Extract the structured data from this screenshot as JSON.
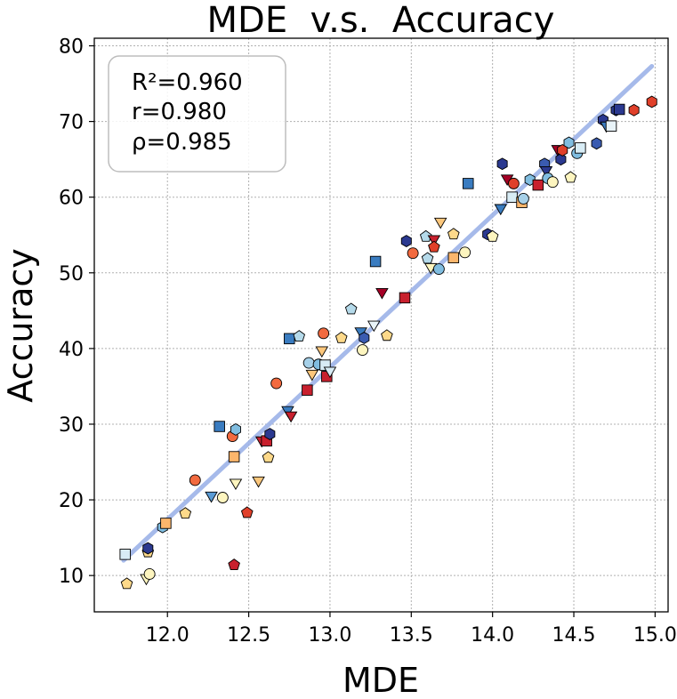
{
  "chart_data": {
    "type": "scatter",
    "title": "MDE  v.s.  Accuracy",
    "xlabel": "MDE",
    "ylabel": "Accuracy",
    "xlim": [
      11.55,
      15.08
    ],
    "ylim": [
      5.2,
      81
    ],
    "xticks": [
      12.0,
      12.5,
      13.0,
      13.5,
      14.0,
      14.5,
      15.0
    ],
    "yticks": [
      10,
      20,
      30,
      40,
      50,
      60,
      70,
      80
    ],
    "xtick_labels": [
      "12.0",
      "12.5",
      "13.0",
      "13.5",
      "14.0",
      "14.5",
      "15.0"
    ],
    "ytick_labels": [
      "10",
      "20",
      "30",
      "40",
      "50",
      "60",
      "70",
      "80"
    ],
    "grid": true,
    "stats": [
      "R²=0.960",
      "r=0.980",
      "ρ=0.985"
    ],
    "stats_box_location": "upper-left",
    "fit_line": {
      "x": [
        11.73,
        14.98
      ],
      "y": [
        12.0,
        77.3
      ],
      "color": "#9db3e8"
    },
    "colors": {
      "dark_navy": "#2b3990",
      "steel_blue": "#3a7cc0",
      "light_blue": "#80bde0",
      "pale_blue": "#d8ecf5",
      "cream": "#fdf5bf",
      "light_orange": "#fcc77c",
      "orange_red": "#f26a3f",
      "crimson": "#c8202e",
      "dark_red": "#a50026"
    },
    "points": [
      {
        "x": 11.74,
        "y": 12.8,
        "marker": "square",
        "color": "#d8ecf5"
      },
      {
        "x": 11.75,
        "y": 8.9,
        "marker": "pentagon",
        "color": "#fdd98a"
      },
      {
        "x": 11.87,
        "y": 9.8,
        "marker": "triangle-down",
        "color": "#fdf5bf"
      },
      {
        "x": 11.89,
        "y": 10.2,
        "marker": "circle",
        "color": "#fdf5bf"
      },
      {
        "x": 11.88,
        "y": 13.1,
        "marker": "pentagon",
        "color": "#fdd98a"
      },
      {
        "x": 11.88,
        "y": 13.6,
        "marker": "hexagon",
        "color": "#2b3990"
      },
      {
        "x": 11.97,
        "y": 16.4,
        "marker": "hexagon",
        "color": "#80bde0"
      },
      {
        "x": 11.99,
        "y": 16.9,
        "marker": "square",
        "color": "#fcb66c"
      },
      {
        "x": 12.11,
        "y": 18.2,
        "marker": "pentagon",
        "color": "#fdd98a"
      },
      {
        "x": 12.17,
        "y": 22.6,
        "marker": "circle",
        "color": "#f26a3f"
      },
      {
        "x": 12.27,
        "y": 20.7,
        "marker": "triangle-down",
        "color": "#5a9bd5"
      },
      {
        "x": 12.34,
        "y": 20.3,
        "marker": "circle",
        "color": "#fdf5bf"
      },
      {
        "x": 12.32,
        "y": 29.7,
        "marker": "square",
        "color": "#3a7cc0"
      },
      {
        "x": 12.4,
        "y": 28.4,
        "marker": "circle",
        "color": "#f26a3f"
      },
      {
        "x": 12.42,
        "y": 29.3,
        "marker": "hexagon",
        "color": "#80bde0"
      },
      {
        "x": 12.41,
        "y": 25.7,
        "marker": "square",
        "color": "#fcb66c"
      },
      {
        "x": 12.42,
        "y": 22.4,
        "marker": "triangle-down",
        "color": "#fdf5bf"
      },
      {
        "x": 12.41,
        "y": 11.4,
        "marker": "pentagon",
        "color": "#c8202e"
      },
      {
        "x": 12.49,
        "y": 18.3,
        "marker": "pentagon",
        "color": "#e0402a"
      },
      {
        "x": 12.56,
        "y": 22.7,
        "marker": "triangle-down",
        "color": "#fcc77c"
      },
      {
        "x": 12.58,
        "y": 28.0,
        "marker": "triangle-down",
        "color": "#c8202e"
      },
      {
        "x": 12.61,
        "y": 27.8,
        "marker": "square",
        "color": "#c8202e"
      },
      {
        "x": 12.62,
        "y": 25.6,
        "marker": "pentagon",
        "color": "#fdd98a"
      },
      {
        "x": 12.63,
        "y": 28.7,
        "marker": "hexagon",
        "color": "#2b3990"
      },
      {
        "x": 12.67,
        "y": 35.4,
        "marker": "circle",
        "color": "#f26a3f"
      },
      {
        "x": 12.74,
        "y": 32.0,
        "marker": "triangle-down",
        "color": "#3a7cc0"
      },
      {
        "x": 12.76,
        "y": 31.3,
        "marker": "triangle-down",
        "color": "#c8202e"
      },
      {
        "x": 12.75,
        "y": 41.3,
        "marker": "square",
        "color": "#3a7cc0"
      },
      {
        "x": 12.81,
        "y": 41.6,
        "marker": "pentagon",
        "color": "#b5daea"
      },
      {
        "x": 12.86,
        "y": 34.5,
        "marker": "square",
        "color": "#c8202e"
      },
      {
        "x": 12.87,
        "y": 38.1,
        "marker": "circle",
        "color": "#a6d0e8"
      },
      {
        "x": 12.89,
        "y": 36.8,
        "marker": "triangle-down",
        "color": "#fcc77c"
      },
      {
        "x": 12.93,
        "y": 37.9,
        "marker": "circle",
        "color": "#80bde0"
      },
      {
        "x": 12.95,
        "y": 39.9,
        "marker": "triangle-down",
        "color": "#fcc77c"
      },
      {
        "x": 12.96,
        "y": 42.0,
        "marker": "circle",
        "color": "#f26a3f"
      },
      {
        "x": 12.97,
        "y": 37.8,
        "marker": "square",
        "color": "#d8ecf5"
      },
      {
        "x": 12.98,
        "y": 36.3,
        "marker": "square",
        "color": "#c8202e"
      },
      {
        "x": 13.0,
        "y": 37.2,
        "marker": "triangle-down",
        "color": "#d8ecf5"
      },
      {
        "x": 13.07,
        "y": 41.4,
        "marker": "pentagon",
        "color": "#fdd98a"
      },
      {
        "x": 13.13,
        "y": 45.2,
        "marker": "pentagon",
        "color": "#b5daea"
      },
      {
        "x": 13.19,
        "y": 42.4,
        "marker": "triangle-down",
        "color": "#3a7cc0"
      },
      {
        "x": 13.21,
        "y": 41.4,
        "marker": "hexagon",
        "color": "#3a5bb0"
      },
      {
        "x": 13.2,
        "y": 39.8,
        "marker": "circle",
        "color": "#fdf5bf"
      },
      {
        "x": 13.27,
        "y": 43.3,
        "marker": "triangle-down",
        "color": "#e8f3f8"
      },
      {
        "x": 13.28,
        "y": 51.5,
        "marker": "square",
        "color": "#3a7cc0"
      },
      {
        "x": 13.32,
        "y": 47.6,
        "marker": "triangle-down",
        "color": "#a50026"
      },
      {
        "x": 13.35,
        "y": 41.7,
        "marker": "pentagon",
        "color": "#fdd98a"
      },
      {
        "x": 13.46,
        "y": 46.7,
        "marker": "square",
        "color": "#c8202e"
      },
      {
        "x": 13.47,
        "y": 54.2,
        "marker": "hexagon",
        "color": "#2b3990"
      },
      {
        "x": 13.51,
        "y": 52.6,
        "marker": "circle",
        "color": "#f26a3f"
      },
      {
        "x": 13.59,
        "y": 54.8,
        "marker": "pentagon",
        "color": "#b5daea"
      },
      {
        "x": 13.6,
        "y": 51.9,
        "marker": "pentagon",
        "color": "#b5daea"
      },
      {
        "x": 13.62,
        "y": 50.9,
        "marker": "triangle-down",
        "color": "#fdf5bf"
      },
      {
        "x": 13.64,
        "y": 54.6,
        "marker": "triangle-down",
        "color": "#c8202e"
      },
      {
        "x": 13.64,
        "y": 53.4,
        "marker": "pentagon",
        "color": "#e0402a"
      },
      {
        "x": 13.67,
        "y": 50.5,
        "marker": "circle",
        "color": "#80bde0"
      },
      {
        "x": 13.68,
        "y": 56.9,
        "marker": "triangle-down",
        "color": "#fcc77c"
      },
      {
        "x": 13.76,
        "y": 52.0,
        "marker": "square",
        "color": "#fcb66c"
      },
      {
        "x": 13.76,
        "y": 55.1,
        "marker": "pentagon",
        "color": "#fdd98a"
      },
      {
        "x": 13.83,
        "y": 52.7,
        "marker": "circle",
        "color": "#fdf5bf"
      },
      {
        "x": 13.85,
        "y": 61.8,
        "marker": "square",
        "color": "#3a7cc0"
      },
      {
        "x": 13.97,
        "y": 55.1,
        "marker": "hexagon",
        "color": "#2b3990"
      },
      {
        "x": 14.0,
        "y": 54.8,
        "marker": "pentagon",
        "color": "#fdf5bf"
      },
      {
        "x": 14.05,
        "y": 58.7,
        "marker": "triangle-down",
        "color": "#3a7cc0"
      },
      {
        "x": 14.06,
        "y": 64.4,
        "marker": "hexagon",
        "color": "#2b3990"
      },
      {
        "x": 14.09,
        "y": 62.6,
        "marker": "triangle-down",
        "color": "#a50026"
      },
      {
        "x": 14.13,
        "y": 61.8,
        "marker": "circle",
        "color": "#e0402a"
      },
      {
        "x": 14.12,
        "y": 60.0,
        "marker": "square",
        "color": "#d8ecf5"
      },
      {
        "x": 14.18,
        "y": 59.3,
        "marker": "square",
        "color": "#fcb66c"
      },
      {
        "x": 14.19,
        "y": 59.8,
        "marker": "circle",
        "color": "#a6d0e8"
      },
      {
        "x": 14.23,
        "y": 62.3,
        "marker": "hexagon",
        "color": "#80bde0"
      },
      {
        "x": 14.28,
        "y": 61.6,
        "marker": "square",
        "color": "#c8202e"
      },
      {
        "x": 14.32,
        "y": 64.4,
        "marker": "hexagon",
        "color": "#3a5bb0"
      },
      {
        "x": 14.33,
        "y": 63.7,
        "marker": "triangle-down",
        "color": "#2b3990"
      },
      {
        "x": 14.34,
        "y": 62.5,
        "marker": "circle",
        "color": "#80bde0"
      },
      {
        "x": 14.37,
        "y": 62.0,
        "marker": "circle",
        "color": "#fdf5bf"
      },
      {
        "x": 14.4,
        "y": 66.5,
        "marker": "triangle-down",
        "color": "#a50026"
      },
      {
        "x": 14.42,
        "y": 65.0,
        "marker": "hexagon",
        "color": "#2b3990"
      },
      {
        "x": 14.43,
        "y": 66.2,
        "marker": "hexagon",
        "color": "#e0402a"
      },
      {
        "x": 14.47,
        "y": 67.2,
        "marker": "hexagon",
        "color": "#80bde0"
      },
      {
        "x": 14.48,
        "y": 62.6,
        "marker": "pentagon",
        "color": "#fdf5bf"
      },
      {
        "x": 14.52,
        "y": 65.8,
        "marker": "circle",
        "color": "#80bde0"
      },
      {
        "x": 14.54,
        "y": 66.5,
        "marker": "square",
        "color": "#d8ecf5"
      },
      {
        "x": 14.64,
        "y": 67.1,
        "marker": "hexagon",
        "color": "#3a5bb0"
      },
      {
        "x": 14.68,
        "y": 70.2,
        "marker": "hexagon",
        "color": "#2b3990"
      },
      {
        "x": 14.7,
        "y": 69.6,
        "marker": "triangle-down",
        "color": "#3a7cc0"
      },
      {
        "x": 14.73,
        "y": 69.4,
        "marker": "square",
        "color": "#e8f3f8"
      },
      {
        "x": 14.76,
        "y": 71.5,
        "marker": "hexagon",
        "color": "#2b3990"
      },
      {
        "x": 14.78,
        "y": 71.6,
        "marker": "square",
        "color": "#2b3990"
      },
      {
        "x": 14.87,
        "y": 71.5,
        "marker": "hexagon",
        "color": "#e0402a"
      },
      {
        "x": 14.98,
        "y": 72.6,
        "marker": "hexagon",
        "color": "#e0402a"
      }
    ]
  }
}
